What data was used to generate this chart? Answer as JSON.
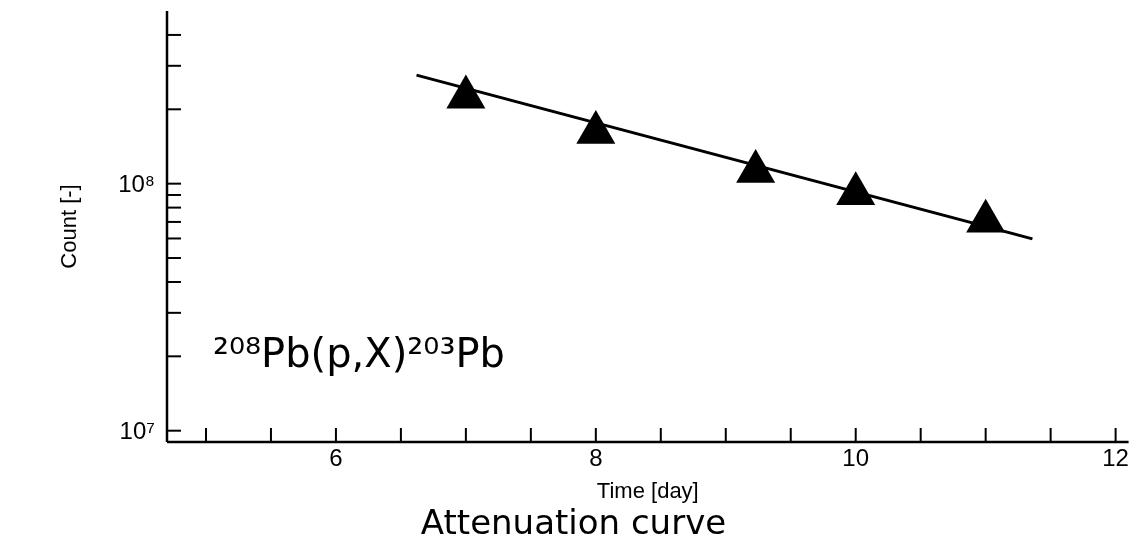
{
  "chart_data": {
    "type": "scatter",
    "title": "Attenuation curve",
    "xlabel": "Time [day]",
    "ylabel": "Count [-]",
    "annotations": [
      "²⁰⁸Pb(p,X)²⁰³Pb"
    ],
    "log": "y",
    "grid": false,
    "marker": "triangle",
    "xlim": [
      4.7,
      12.1
    ],
    "xticks": [
      {
        "value": 5,
        "label": null
      },
      {
        "value": 5.5,
        "label": null
      },
      6,
      {
        "value": 6.5,
        "label": null
      },
      {
        "value": 7,
        "label": null
      },
      {
        "value": 7.5,
        "label": null
      },
      8,
      {
        "value": 8.5,
        "label": null
      },
      {
        "value": 9,
        "label": null
      },
      {
        "value": 9.5,
        "label": null
      },
      10,
      {
        "value": 10.5,
        "label": null
      },
      {
        "value": 11,
        "label": null
      },
      {
        "value": 11.5,
        "label": null
      },
      12
    ],
    "ylim": [
      9000000,
      500000000
    ],
    "yticks": [
      {
        "value": 10000000,
        "label": "10⁷"
      },
      {
        "value": 20000000,
        "label": null
      },
      {
        "value": 30000000,
        "label": null
      },
      {
        "value": 40000000,
        "label": null
      },
      {
        "value": 50000000,
        "label": null
      },
      {
        "value": 60000000,
        "label": null
      },
      {
        "value": 70000000,
        "label": null
      },
      {
        "value": 80000000,
        "label": null
      },
      {
        "value": 90000000,
        "label": null
      },
      {
        "value": 100000000,
        "label": "10⁸"
      },
      {
        "value": 200000000,
        "label": null
      },
      {
        "value": 300000000,
        "label": null
      },
      {
        "value": 400000000,
        "label": null
      }
    ],
    "series": [
      {
        "color": "#000000",
        "x": [
          7,
          8,
          9.23,
          10,
          11
        ],
        "values": [
          224000000,
          161000000,
          112000000,
          91000000,
          70500000
        ]
      },
      {
        "type": "line",
        "color": "#000000",
        "marker": "none",
        "line_style": "solid",
        "x": [
          6.62,
          11.36
        ],
        "values": [
          275000000,
          59800000
        ]
      }
    ]
  }
}
